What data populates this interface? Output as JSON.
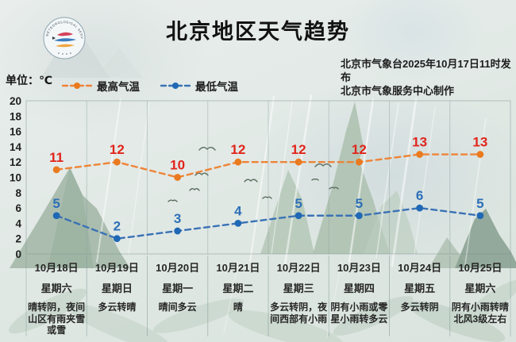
{
  "header": {
    "title": "北京地区天气趋势",
    "publisher_line1": "北京市气象台2025年10月17日11时发布",
    "publisher_line2": "北京市气象服务中心制作",
    "logo_name": "beijing-meteorological-service-logo",
    "logo_rim_text": "METEOROLOGICAL SERVICE"
  },
  "unit_label": "单位：℃",
  "legend": [
    {
      "label": "最高气温",
      "color": "#ee8438",
      "dot_color": "#ea7a1f"
    },
    {
      "label": "最低气温",
      "color": "#3a72b5",
      "dot_color": "#1f68b5"
    }
  ],
  "chart_data": {
    "type": "line",
    "categories": [
      "10月18日",
      "10月19日",
      "10月20日",
      "10月21日",
      "10月22日",
      "10月23日",
      "10月24日",
      "10月25日"
    ],
    "series": [
      {
        "name": "最高气温",
        "values": [
          11,
          12,
          10,
          12,
          12,
          12,
          13,
          13
        ],
        "line_color": "#ee8438",
        "dot_color": "#ea7a1f",
        "label_color": "#e1251b",
        "style": "dashed"
      },
      {
        "name": "最低气温",
        "values": [
          5,
          2,
          3,
          4,
          5,
          5,
          6,
          5
        ],
        "line_color": "#3a72b5",
        "dot_color": "#1f68b5",
        "label_color": "#2d6fb7",
        "style": "dashed"
      }
    ],
    "ylabel": "℃",
    "ylim": [
      0,
      20
    ],
    "ytick_step": 2,
    "grid": "vertical-column-boundaries",
    "legend_position": "top-left",
    "point_labels_shown": true
  },
  "days": [
    {
      "date": "10月18日",
      "weekday": "星期六",
      "weather": "晴转阴，夜间山区有雨夹雪或雪"
    },
    {
      "date": "10月19日",
      "weekday": "星期日",
      "weather": "多云转晴"
    },
    {
      "date": "10月20日",
      "weekday": "星期一",
      "weather": "晴间多云"
    },
    {
      "date": "10月21日",
      "weekday": "星期二",
      "weather": "晴"
    },
    {
      "date": "10月22日",
      "weekday": "星期三",
      "weather": "多云转阴，夜间西部有小雨"
    },
    {
      "date": "10月23日",
      "weekday": "星期四",
      "weather": "阴有小雨或零星小雨转多云"
    },
    {
      "date": "10月24日",
      "weekday": "星期五",
      "weather": "多云转阴"
    },
    {
      "date": "10月25日",
      "weekday": "星期六",
      "weather": "阴有小雨转晴北风3级左右"
    }
  ]
}
